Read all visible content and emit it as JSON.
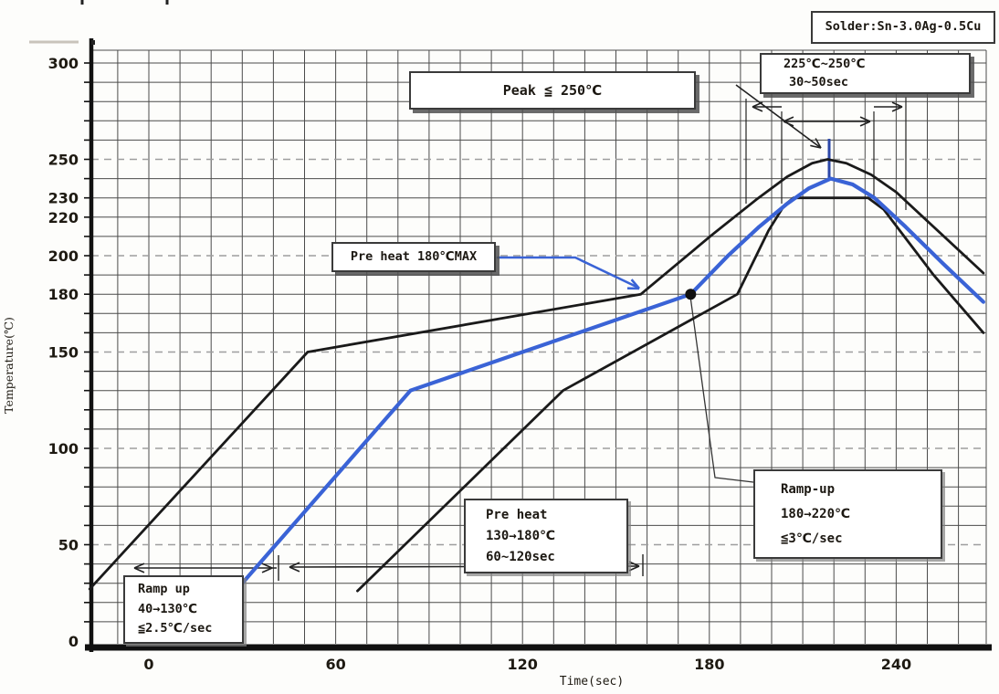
{
  "figure": {
    "solder_label": "Solder:Sn-3.0Ag-0.5Cu"
  },
  "axes": {
    "x_label": "Time(sec)",
    "y_label": "Temperature(℃)",
    "x_ticks": [
      0,
      60,
      120,
      180,
      240
    ],
    "y_ticks": [
      0,
      50,
      100,
      150,
      180,
      200,
      220,
      230,
      250,
      300
    ]
  },
  "annotations": {
    "peak": {
      "text": "Peak  ≦ 250℃"
    },
    "peak_window": {
      "lines": [
        "225℃~250℃",
        "30~50sec"
      ]
    },
    "preheat_max": {
      "text": "Pre heat 180℃MAX"
    },
    "ramp_up_high": {
      "lines": [
        "Ramp-up",
        "180→220℃",
        "≦3℃/sec"
      ]
    },
    "preheat": {
      "lines": [
        "Pre heat",
        "130→180℃",
        "60~120sec"
      ]
    },
    "ramp_up_low": {
      "lines": [
        "Ramp up",
        "40→130℃",
        "≦2.5℃/sec"
      ]
    }
  },
  "colors": {
    "profile_blue": "#3a63d6",
    "envelope_black": "#1a1a1a",
    "grid": "#4b4b4b",
    "grid_major_dashed": "#9e9e9e",
    "text": "#1e1a12"
  },
  "chart_data": {
    "type": "line",
    "xlabel": "Time(sec)",
    "ylabel": "Temperature(℃)",
    "xlim": [
      -19,
      269
    ],
    "ylim": [
      0,
      307
    ],
    "x_ticks": [
      0,
      60,
      120,
      180,
      240
    ],
    "y_ticks": [
      0,
      50,
      100,
      150,
      180,
      200,
      220,
      230,
      250,
      300
    ],
    "grid": {
      "minor_step_x_sec": 10,
      "minor_step_y_c": 10,
      "dashed_y_values": [
        50,
        100,
        150,
        200,
        250
      ]
    },
    "legend": "none",
    "series": [
      {
        "name": "max-envelope",
        "color": "#1a1a1a",
        "points": [
          [
            -19,
            27
          ],
          [
            51,
            150
          ],
          [
            158,
            180
          ],
          [
            181,
            211
          ],
          [
            195,
            229
          ],
          [
            205,
            241
          ],
          [
            213,
            248
          ],
          [
            218,
            250
          ],
          [
            224,
            248
          ],
          [
            232,
            242
          ],
          [
            240,
            233
          ],
          [
            268,
            191
          ]
        ]
      },
      {
        "name": "min-envelope",
        "color": "#1a1a1a",
        "points": [
          [
            67,
            26
          ],
          [
            133,
            130
          ],
          [
            189,
            180
          ],
          [
            199,
            213
          ],
          [
            204,
            226
          ],
          [
            207,
            230
          ],
          [
            231,
            230
          ],
          [
            236,
            224
          ],
          [
            244,
            207
          ],
          [
            252,
            190
          ],
          [
            268,
            160
          ]
        ]
      },
      {
        "name": "typical-profile",
        "color": "#3a63d6",
        "points": [
          [
            30,
            30
          ],
          [
            84,
            130
          ],
          [
            174,
            180
          ],
          [
            186,
            200
          ],
          [
            196,
            215
          ],
          [
            205,
            227
          ],
          [
            212,
            235
          ],
          [
            219,
            240
          ],
          [
            226,
            237
          ],
          [
            233,
            230
          ],
          [
            243,
            215
          ],
          [
            255,
            196
          ],
          [
            268,
            176
          ]
        ]
      }
    ],
    "marker_point": {
      "t": 174,
      "temp": 180
    },
    "annotation_values": {
      "peak_limit_c": 250,
      "peak_window_c": [
        225,
        250
      ],
      "peak_window_sec": [
        30,
        50
      ],
      "preheat_max_c": 180,
      "ramp_up_high": {
        "from_c": 180,
        "to_c": 220,
        "max_rate_c_per_sec": 3
      },
      "preheat": {
        "from_c": 130,
        "to_c": 180,
        "duration_sec": [
          60,
          120
        ]
      },
      "ramp_up_low": {
        "from_c": 40,
        "to_c": 130,
        "max_rate_c_per_sec": 2.5
      }
    }
  }
}
